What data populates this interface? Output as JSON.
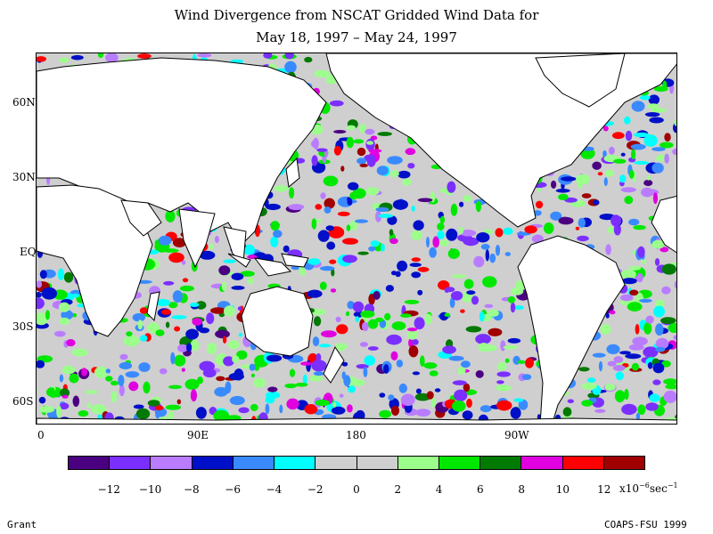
{
  "title": {
    "line1": "Wind Divergence from NSCAT Gridded Wind Data for",
    "line2": "May 18, 1997 – May 24, 1997"
  },
  "lat_labels": [
    "60N",
    "30N",
    "EQ",
    "30S",
    "60S"
  ],
  "lon_labels": [
    "0",
    "90E",
    "180",
    "90W"
  ],
  "colorbar": {
    "colors": [
      "#4b0082",
      "#7b2fff",
      "#b97cff",
      "#0010c8",
      "#3a8aff",
      "#00ffff",
      "#cfcfcf",
      "#cfcfcf",
      "#9cff8c",
      "#00e800",
      "#007a00",
      "#e000e0",
      "#ff0000",
      "#a00000"
    ],
    "tick_labels": [
      "−12",
      "−10",
      "−8",
      "−6",
      "−4",
      "−2",
      "0",
      "2",
      "4",
      "6",
      "8",
      "10",
      "12"
    ],
    "unit": {
      "base": "x10",
      "exp": "−6",
      "suffix": "sec",
      "suffix_exp": "−1"
    }
  },
  "footer": {
    "left": "Grant",
    "right": "COAPS-FSU 1999"
  }
}
